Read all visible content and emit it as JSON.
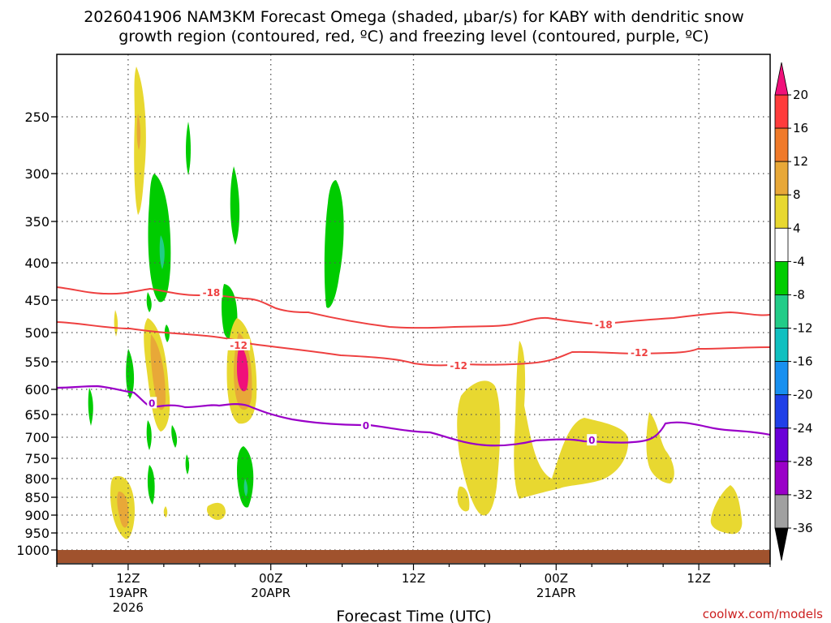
{
  "chart_data": {
    "type": "contour",
    "title_line1": "2026041906 NAM3KM Forecast Omega (shaded, μbar/s) for KABY with dendritic snow",
    "title_line2": "growth region (contoured, red, ºC) and freezing level (contoured, purple, ºC)",
    "xlabel": "Forecast Time (UTC)",
    "credit": "coolwx.com/models",
    "y_ticks": [
      "250",
      "300",
      "350",
      "400",
      "450",
      "500",
      "550",
      "600",
      "650",
      "700",
      "750",
      "800",
      "850",
      "900",
      "950",
      "1000"
    ],
    "y_values": [
      250,
      300,
      350,
      400,
      450,
      500,
      550,
      600,
      650,
      700,
      750,
      800,
      850,
      900,
      950,
      1000
    ],
    "ylim": [
      200,
      1012
    ],
    "x_ticks": [
      {
        "hour": 6,
        "label": "12Z",
        "date": "19APR",
        "year": "2026"
      },
      {
        "hour": 18,
        "label": "00Z",
        "date": "20APR",
        "year": ""
      },
      {
        "hour": 30,
        "label": "12Z",
        "date": "",
        "year": ""
      },
      {
        "hour": 42,
        "label": "00Z",
        "date": "21APR",
        "year": ""
      },
      {
        "hour": 54,
        "label": "12Z",
        "date": "",
        "year": ""
      }
    ],
    "xlim": [
      0,
      60
    ],
    "colorbar_labels": [
      "20",
      "16",
      "12",
      "8",
      "4",
      "-4",
      "-8",
      "-12",
      "-16",
      "-20",
      "-24",
      "-28",
      "-32",
      "-36"
    ],
    "colorbar_colors": [
      "#ff3c3c",
      "#f07a2a",
      "#e8a838",
      "#e8d830",
      "#ffffff",
      "#00cc00",
      "#22cc88",
      "#10c0c0",
      "#1890f0",
      "#2040e8",
      "#6a00d8",
      "#9a00c8",
      "#a0a0a0"
    ],
    "colorbar_top_color": "#f0107a",
    "colorbar_bottom_color": "#000000",
    "ground_color": "#a0522d",
    "dgz_color": "#ee4040",
    "freezing_color": "#9a00c8",
    "contour_labels": [
      {
        "text": "-18",
        "hour": 13,
        "p": 440,
        "color": "#ee4040"
      },
      {
        "text": "-12",
        "hour": 15.3,
        "p": 522,
        "color": "#ee4040"
      },
      {
        "text": "0",
        "hour": 8,
        "p": 628,
        "color": "#9a00c8"
      },
      {
        "text": "0",
        "hour": 26,
        "p": 675,
        "color": "#9a00c8"
      },
      {
        "text": "-12",
        "hour": 33.8,
        "p": 557,
        "color": "#ee4040"
      },
      {
        "text": "-18",
        "hour": 46,
        "p": 488,
        "color": "#ee4040"
      },
      {
        "text": "-12",
        "hour": 49,
        "p": 535,
        "color": "#ee4040"
      },
      {
        "text": "0",
        "hour": 45,
        "p": 708,
        "color": "#9a00c8"
      }
    ]
  }
}
